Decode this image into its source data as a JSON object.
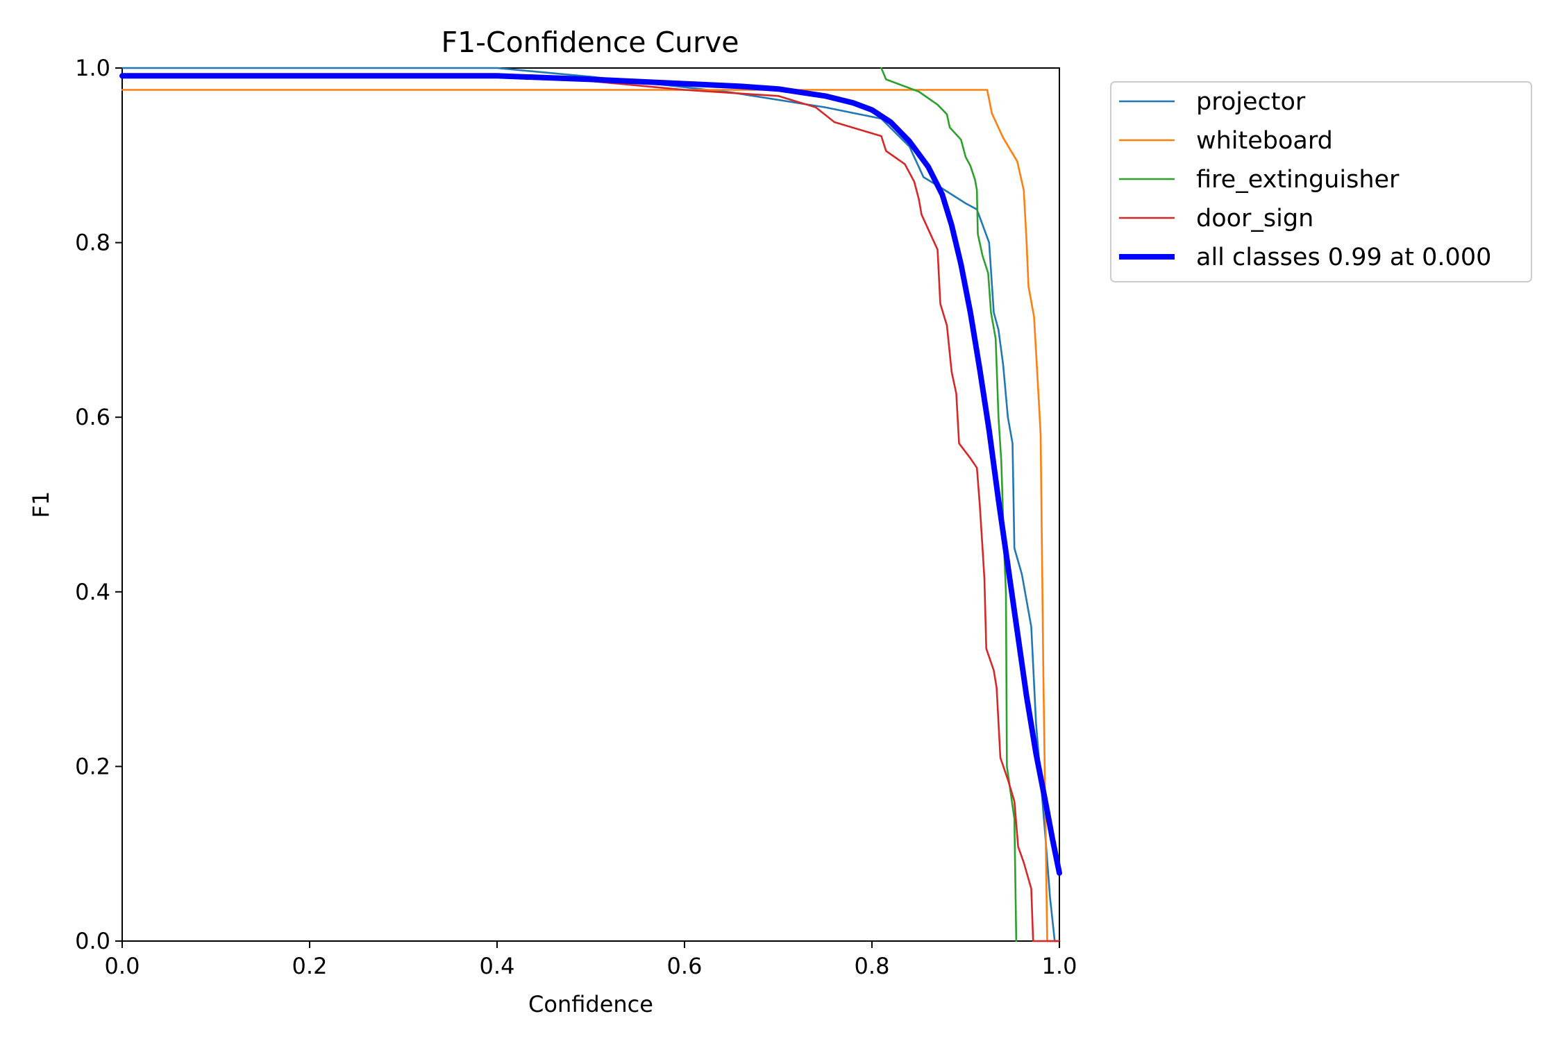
{
  "chart_data": {
    "type": "line",
    "title": "F1-Confidence Curve",
    "xlabel": "Confidence",
    "ylabel": "F1",
    "xlim": [
      0,
      1
    ],
    "ylim": [
      0,
      1
    ],
    "xticks": [
      "0.0",
      "0.2",
      "0.4",
      "0.6",
      "0.8",
      "1.0"
    ],
    "yticks": [
      "0.0",
      "0.2",
      "0.4",
      "0.6",
      "0.8",
      "1.0"
    ],
    "grid": false,
    "legend_position": "outside-top-right",
    "series": [
      {
        "name": "projector",
        "color": "#1f77b4",
        "points": [
          [
            0.0,
            1.0
          ],
          [
            0.4,
            1.0
          ],
          [
            0.5,
            0.99
          ],
          [
            0.65,
            0.972
          ],
          [
            0.75,
            0.955
          ],
          [
            0.81,
            0.942
          ],
          [
            0.84,
            0.91
          ],
          [
            0.855,
            0.875
          ],
          [
            0.875,
            0.862
          ],
          [
            0.9,
            0.845
          ],
          [
            0.912,
            0.838
          ],
          [
            0.925,
            0.8
          ],
          [
            0.93,
            0.72
          ],
          [
            0.935,
            0.7
          ],
          [
            0.94,
            0.66
          ],
          [
            0.945,
            0.6
          ],
          [
            0.95,
            0.57
          ],
          [
            0.952,
            0.45
          ],
          [
            0.96,
            0.42
          ],
          [
            0.97,
            0.36
          ],
          [
            0.975,
            0.25
          ],
          [
            0.985,
            0.12
          ],
          [
            0.99,
            0.05
          ],
          [
            0.995,
            0.0
          ],
          [
            1.0,
            0.0
          ]
        ]
      },
      {
        "name": "whiteboard",
        "color": "#ff7f0e",
        "points": [
          [
            0.0,
            0.975
          ],
          [
            0.923,
            0.975
          ],
          [
            0.928,
            0.948
          ],
          [
            0.94,
            0.92
          ],
          [
            0.955,
            0.893
          ],
          [
            0.962,
            0.86
          ],
          [
            0.965,
            0.8
          ],
          [
            0.967,
            0.75
          ],
          [
            0.973,
            0.715
          ],
          [
            0.978,
            0.62
          ],
          [
            0.98,
            0.58
          ],
          [
            0.983,
            0.3
          ],
          [
            0.987,
            0.0
          ],
          [
            1.0,
            0.0
          ]
        ]
      },
      {
        "name": "fire_extinguisher",
        "color": "#2ca02c",
        "points": [
          [
            0.81,
            1.0
          ],
          [
            0.815,
            0.987
          ],
          [
            0.85,
            0.973
          ],
          [
            0.87,
            0.958
          ],
          [
            0.88,
            0.947
          ],
          [
            0.883,
            0.932
          ],
          [
            0.895,
            0.918
          ],
          [
            0.9,
            0.898
          ],
          [
            0.905,
            0.888
          ],
          [
            0.91,
            0.872
          ],
          [
            0.912,
            0.86
          ],
          [
            0.913,
            0.81
          ],
          [
            0.918,
            0.785
          ],
          [
            0.924,
            0.765
          ],
          [
            0.927,
            0.72
          ],
          [
            0.932,
            0.69
          ],
          [
            0.935,
            0.6
          ],
          [
            0.938,
            0.55
          ],
          [
            0.941,
            0.45
          ],
          [
            0.943,
            0.4
          ],
          [
            0.944,
            0.2
          ],
          [
            0.948,
            0.17
          ],
          [
            0.952,
            0.14
          ],
          [
            0.954,
            0.0
          ]
        ]
      },
      {
        "name": "door_sign",
        "color": "#d62728",
        "points": [
          [
            0.0,
            0.99
          ],
          [
            0.45,
            0.99
          ],
          [
            0.6,
            0.975
          ],
          [
            0.7,
            0.968
          ],
          [
            0.74,
            0.955
          ],
          [
            0.76,
            0.938
          ],
          [
            0.81,
            0.922
          ],
          [
            0.815,
            0.905
          ],
          [
            0.835,
            0.89
          ],
          [
            0.845,
            0.87
          ],
          [
            0.85,
            0.85
          ],
          [
            0.853,
            0.832
          ],
          [
            0.87,
            0.792
          ],
          [
            0.873,
            0.73
          ],
          [
            0.88,
            0.705
          ],
          [
            0.885,
            0.652
          ],
          [
            0.89,
            0.627
          ],
          [
            0.893,
            0.57
          ],
          [
            0.905,
            0.553
          ],
          [
            0.912,
            0.542
          ],
          [
            0.915,
            0.5
          ],
          [
            0.918,
            0.45
          ],
          [
            0.92,
            0.415
          ],
          [
            0.922,
            0.335
          ],
          [
            0.93,
            0.31
          ],
          [
            0.933,
            0.29
          ],
          [
            0.937,
            0.21
          ],
          [
            0.945,
            0.185
          ],
          [
            0.952,
            0.16
          ],
          [
            0.956,
            0.108
          ],
          [
            0.962,
            0.09
          ],
          [
            0.97,
            0.06
          ],
          [
            0.972,
            0.0
          ],
          [
            1.0,
            0.0
          ]
        ]
      },
      {
        "name": "all classes 0.99 at 0.000",
        "color": "#0000ff",
        "thick": true,
        "points": [
          [
            0.0,
            0.991
          ],
          [
            0.4,
            0.991
          ],
          [
            0.5,
            0.987
          ],
          [
            0.6,
            0.982
          ],
          [
            0.66,
            0.979
          ],
          [
            0.7,
            0.976
          ],
          [
            0.75,
            0.968
          ],
          [
            0.78,
            0.96
          ],
          [
            0.8,
            0.952
          ],
          [
            0.82,
            0.938
          ],
          [
            0.84,
            0.916
          ],
          [
            0.86,
            0.887
          ],
          [
            0.875,
            0.855
          ],
          [
            0.885,
            0.82
          ],
          [
            0.895,
            0.775
          ],
          [
            0.905,
            0.72
          ],
          [
            0.915,
            0.655
          ],
          [
            0.925,
            0.585
          ],
          [
            0.935,
            0.505
          ],
          [
            0.945,
            0.43
          ],
          [
            0.955,
            0.355
          ],
          [
            0.965,
            0.28
          ],
          [
            0.975,
            0.215
          ],
          [
            0.985,
            0.16
          ],
          [
            0.993,
            0.115
          ],
          [
            1.0,
            0.078
          ]
        ]
      }
    ]
  }
}
